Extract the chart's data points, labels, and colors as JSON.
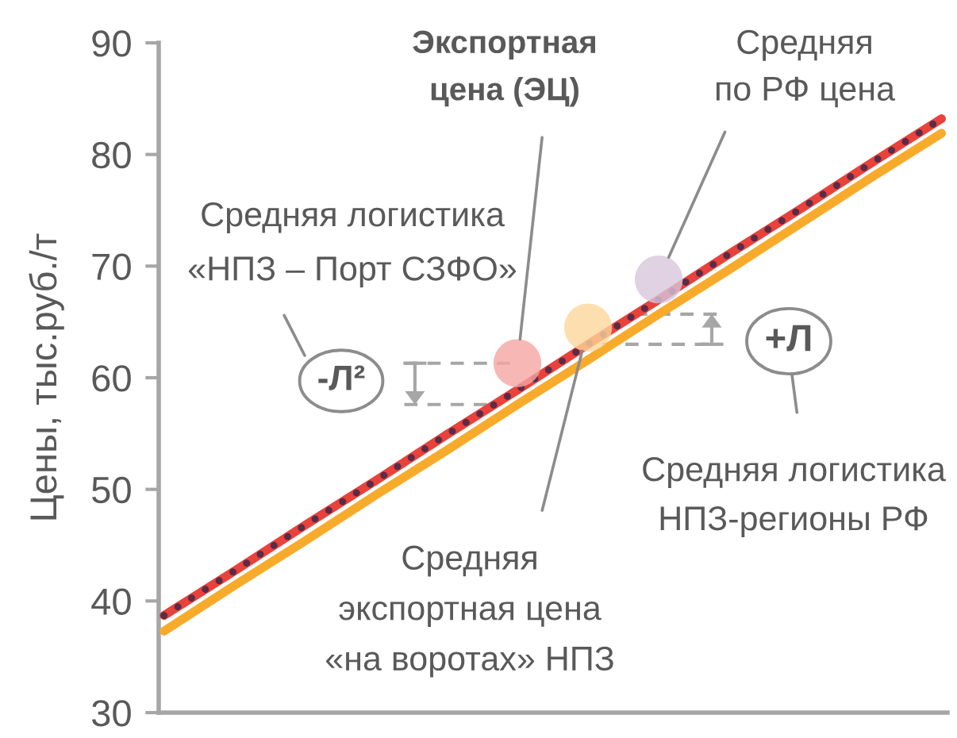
{
  "chart_data": {
    "type": "line",
    "ylabel": "Цены, тыс.руб./т",
    "categories": [
      null,
      null,
      null,
      null,
      null,
      null,
      null,
      null,
      null,
      null,
      null,
      null
    ],
    "series": [
      {
        "color": "#e8423b",
        "values": [
          38.7,
          42.7,
          46.8,
          50.8,
          54.9,
          58.9,
          63.0,
          67.0,
          71.1,
          75.1,
          79.2,
          83.2
        ]
      },
      {
        "color": "#5b2b47",
        "line_style": "dotted",
        "values": [
          38.7,
          42.7,
          46.8,
          50.8,
          54.9,
          58.9,
          63.0,
          67.0,
          71.1,
          75.1,
          79.2,
          83.2
        ]
      },
      {
        "color": "#f8ab2b",
        "values": [
          37.3,
          41.4,
          45.4,
          49.5,
          53.5,
          57.6,
          61.6,
          65.7,
          69.7,
          73.8,
          77.9,
          81.9
        ]
      },
      {
        "type": "scatter",
        "color": "#f5a6a3",
        "marker": "circle",
        "values": [
          null,
          null,
          null,
          null,
          null,
          61.3,
          null,
          null,
          null,
          null,
          null,
          null
        ]
      },
      {
        "type": "scatter",
        "color": "#fcd79b",
        "marker": "circle",
        "values": [
          null,
          null,
          null,
          null,
          null,
          null,
          64.5,
          null,
          null,
          null,
          null,
          null
        ]
      },
      {
        "type": "scatter",
        "color": "#d8c6dc",
        "marker": "circle",
        "values": [
          null,
          null,
          null,
          null,
          null,
          null,
          null,
          68.8,
          null,
          null,
          null,
          null
        ]
      }
    ],
    "ylim": [
      30,
      90
    ],
    "yticks": [
      30,
      40,
      50,
      60,
      70,
      80,
      90
    ],
    "tick_labels": "y",
    "annotations": [
      "Экспортная\nцена (ЭЦ)",
      "Средняя\nпо РФ цена",
      "Средняя логистика\n«НПЗ – Порт СЗФО»",
      "-Л²",
      "+Л",
      "Средняя логистика\nНПЗ-регионы РФ",
      "Средняя\nэкспортная цена\n«на воротах» НПЗ"
    ]
  }
}
